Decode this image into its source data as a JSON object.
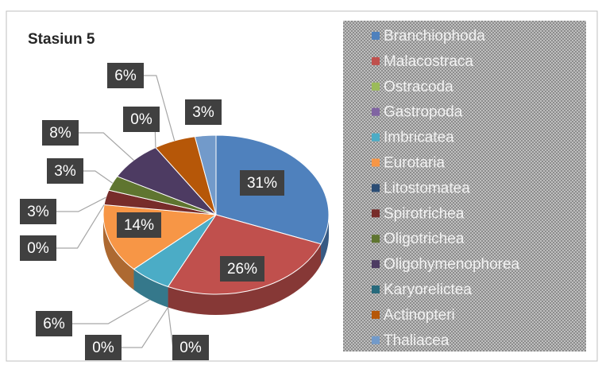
{
  "chart_data": {
    "type": "pie",
    "title": "Stasiun 5",
    "categories": [
      "Branchiophoda",
      "Malacostraca",
      "Ostracoda",
      "Gastropoda",
      "Imbricatea",
      "Eurotaria",
      "Litostomatea",
      "Spirotrichea",
      "Oligotrichea",
      "Oligohymenophorea",
      "Karyorelictea",
      "Actinopteri",
      "Thaliacea"
    ],
    "values": [
      31,
      26,
      0,
      0,
      6,
      14,
      0,
      3,
      3,
      8,
      0,
      6,
      3
    ],
    "value_labels": [
      "31%",
      "26%",
      "0%",
      "0%",
      "6%",
      "14%",
      "0%",
      "3%",
      "3%",
      "8%",
      "0%",
      "6%",
      "3%"
    ],
    "colors": [
      "#4f81bd",
      "#c0504d",
      "#9bbb59",
      "#8064a2",
      "#4bacc6",
      "#f79646",
      "#2c4d75",
      "#772c2a",
      "#5f7530",
      "#4d3b62",
      "#276a7c",
      "#b65708",
      "#729aca"
    ],
    "legend": "right"
  }
}
